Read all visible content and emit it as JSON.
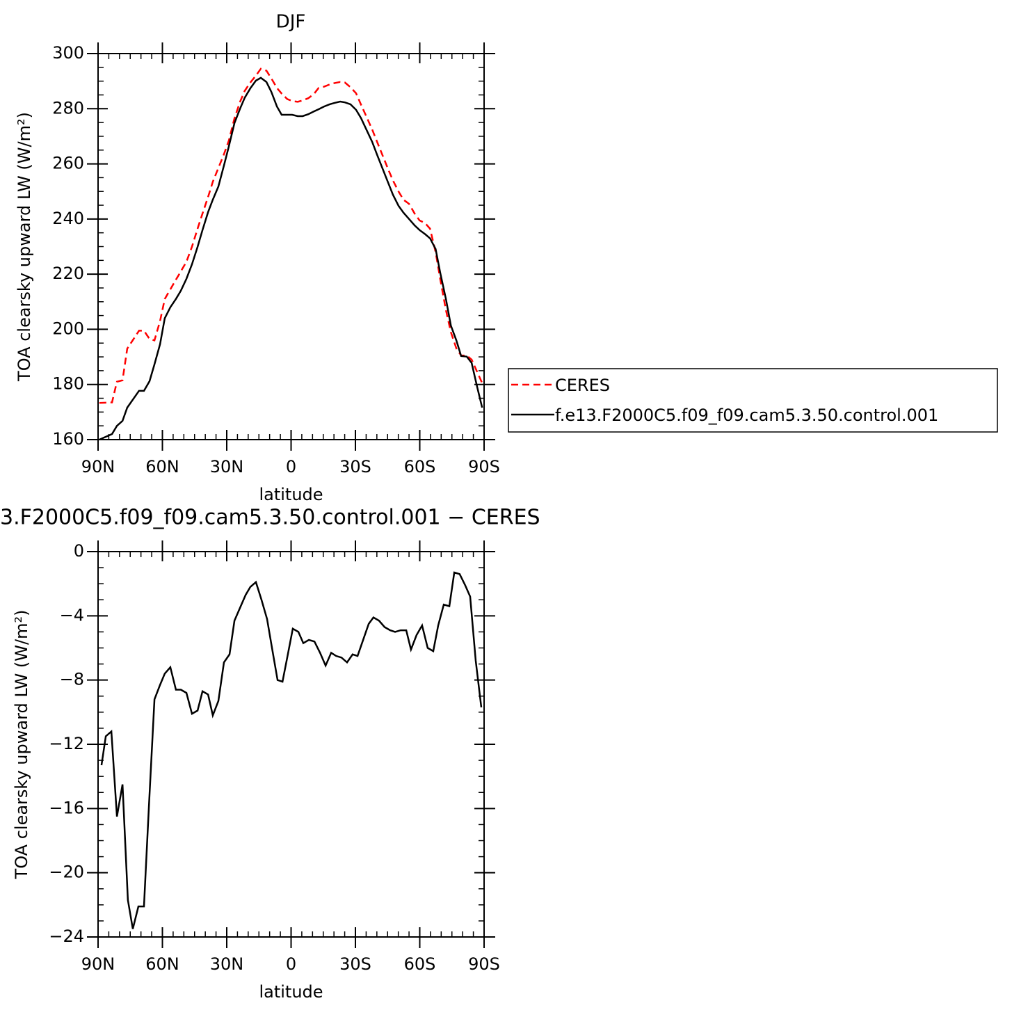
{
  "chart_data": [
    {
      "type": "line",
      "title": "DJF",
      "xlabel": "latitude",
      "ylabel": "TOA clearsky upward LW (W/m²)",
      "x": [
        89.4,
        83.5,
        81.2,
        78.6,
        76.4,
        70.9,
        68.6,
        66,
        63.7,
        61.1,
        58.9,
        56.3,
        53.7,
        51.4,
        48.8,
        46.2,
        43.6,
        41.3,
        38.7,
        36.5,
        33.9,
        31.3,
        29,
        26.4,
        23.8,
        21.6,
        19,
        16.4,
        14.1,
        11.5,
        9.2,
        6.6,
        4.4,
        1.8,
        -0.5,
        -3.1,
        -5.4,
        -8,
        -10.6,
        -12.8,
        -15.4,
        -18,
        -20.3,
        -22.9,
        -25.1,
        -27.7,
        -30.3,
        -32.6,
        -35.2,
        -37.8,
        -40.1,
        -42.7,
        -45.3,
        -47.5,
        -50.1,
        -52.4,
        -55,
        -57.6,
        -59.9,
        -62.5,
        -64.8,
        -67.4,
        -69.6,
        -72.2,
        -74.5,
        -77.1,
        -79.3,
        -81.9,
        -84.2,
        -86.8,
        -89.1
      ],
      "series": [
        {
          "name": "CERES",
          "color": "#ff0000",
          "linestyle": "dashed",
          "values": [
            173.3,
            173.5,
            181,
            181.5,
            193,
            199.5,
            199.5,
            196.5,
            196,
            203,
            211,
            214.5,
            218,
            221,
            224.5,
            230,
            236.5,
            242,
            248,
            253.5,
            258.5,
            263.5,
            268.5,
            276.5,
            282.5,
            286.5,
            289.5,
            292,
            294.5,
            293.8,
            291,
            287.5,
            285.5,
            283.5,
            282.8,
            282.5,
            283,
            283.8,
            285.3,
            287.5,
            288,
            288.8,
            289.3,
            289.7,
            289.5,
            287.8,
            285.6,
            281.5,
            277,
            272.5,
            268,
            263,
            258,
            254,
            250,
            247,
            245.5,
            242,
            239.5,
            238.5,
            236.5,
            228,
            218,
            207,
            199,
            193,
            190.5,
            190.5,
            189,
            184.5,
            180.5
          ]
        },
        {
          "name": "f.e13.F2000C5.f09_f09.cam5.3.50.control.001",
          "color": "#000000",
          "linestyle": "solid",
          "values": [
            160,
            162,
            165,
            166.8,
            171.6,
            177.7,
            177.7,
            181.2,
            187.3,
            194.6,
            204,
            208,
            211,
            214,
            218.3,
            223.6,
            229.9,
            236,
            242.5,
            247,
            251.8,
            259.4,
            266.4,
            274.8,
            280,
            284,
            287.4,
            290.2,
            291.2,
            289.7,
            286.1,
            280.8,
            277.8,
            277.8,
            277.8,
            277.3,
            277.3,
            278,
            279,
            279.8,
            280.8,
            281.6,
            282.1,
            282.6,
            282.3,
            281.6,
            279.6,
            276.6,
            272.3,
            268,
            263.3,
            258.2,
            253.1,
            248.8,
            244.8,
            242.3,
            240,
            237.7,
            236,
            234.5,
            233,
            229.1,
            220.3,
            211,
            201.4,
            195.9,
            190.3,
            190.1,
            187.8,
            179,
            171.6
          ]
        }
      ],
      "xlim": [
        90,
        -90
      ],
      "xticks": [
        {
          "value": 90,
          "label": "90N"
        },
        {
          "value": 60,
          "label": "60N"
        },
        {
          "value": 30,
          "label": "30N"
        },
        0,
        {
          "value": -30,
          "label": "30S"
        },
        {
          "value": -60,
          "label": "60S"
        },
        {
          "value": -90,
          "label": "90S"
        }
      ],
      "xminorticks": [
        85,
        80,
        75,
        70,
        65,
        55,
        50,
        45,
        40,
        35,
        25,
        20,
        15,
        10,
        5,
        -5,
        -10,
        -15,
        -20,
        -25,
        -35,
        -40,
        -45,
        -50,
        -55,
        -65,
        -70,
        -75,
        -80,
        -85
      ],
      "ylim": [
        160,
        300
      ],
      "yticks": [
        160,
        180,
        200,
        220,
        240,
        260,
        280,
        300
      ],
      "yminorticks": [
        165,
        170,
        175,
        185,
        190,
        195,
        205,
        210,
        215,
        225,
        230,
        235,
        245,
        250,
        255,
        265,
        270,
        275,
        285,
        290,
        295
      ],
      "legend": "outside right"
    },
    {
      "type": "line",
      "title": "3.F2000C5.f09_f09.cam5.3.50.control.001  −  CERES",
      "xlabel": "latitude",
      "ylabel": "TOA clearsky upward LW (W/m²)",
      "x": [
        88.4,
        86.4,
        83.8,
        81.2,
        78.6,
        76.1,
        73.8,
        71.2,
        68.6,
        66.3,
        63.7,
        61.1,
        58.9,
        56.3,
        53.7,
        51.4,
        48.8,
        46.2,
        43.6,
        41.3,
        38.7,
        36.5,
        33.9,
        31.3,
        28.7,
        26.4,
        23.8,
        21.2,
        19,
        16.4,
        13.8,
        11.2,
        8.9,
        6.3,
        4,
        1.8,
        -0.8,
        -3.4,
        -5.7,
        -8.3,
        -10.9,
        -13.5,
        -16.1,
        -18.7,
        -21,
        -23.5,
        -26.1,
        -28.7,
        -31,
        -33.6,
        -36.2,
        -38.4,
        -41,
        -43.6,
        -46.2,
        -48.5,
        -51.1,
        -53.7,
        -55.9,
        -58.5,
        -61.1,
        -63.7,
        -66.3,
        -68.6,
        -71.2,
        -73.8,
        -76.1,
        -78.6,
        -81.2,
        -83.5,
        -86.1,
        -88.7
      ],
      "series": [
        {
          "color": "#000000",
          "linestyle": "solid",
          "values": [
            -13.3,
            -11.5,
            -11.2,
            -16.5,
            -14.5,
            -21.7,
            -23.5,
            -22.1,
            -22.1,
            -15.9,
            -9.2,
            -8.3,
            -7.6,
            -7.2,
            -8.6,
            -8.6,
            -8.8,
            -10.1,
            -9.9,
            -8.7,
            -8.9,
            -10.2,
            -9.3,
            -6.9,
            -6.4,
            -4.3,
            -3.5,
            -2.7,
            -2.2,
            -1.9,
            -3,
            -4.2,
            -6,
            -8,
            -8.1,
            -6.6,
            -4.8,
            -5,
            -5.7,
            -5.5,
            -5.6,
            -6.3,
            -7.1,
            -6.3,
            -6.5,
            -6.6,
            -6.9,
            -6.4,
            -6.5,
            -5.5,
            -4.5,
            -4.1,
            -4.3,
            -4.7,
            -4.9,
            -5,
            -4.9,
            -4.9,
            -6.1,
            -5.2,
            -4.6,
            -6,
            -6.2,
            -4.6,
            -3.3,
            -3.4,
            -1.3,
            -1.4,
            -2.1,
            -2.8,
            -6.8,
            -9.7
          ]
        }
      ],
      "xlim": [
        90,
        -90
      ],
      "xticks": [
        {
          "value": 90,
          "label": "90N"
        },
        {
          "value": 60,
          "label": "60N"
        },
        {
          "value": 30,
          "label": "30N"
        },
        0,
        {
          "value": -30,
          "label": "30S"
        },
        {
          "value": -60,
          "label": "60S"
        },
        {
          "value": -90,
          "label": "90S"
        }
      ],
      "xminorticks": [
        85,
        80,
        75,
        70,
        65,
        55,
        50,
        45,
        40,
        35,
        25,
        20,
        15,
        10,
        5,
        -5,
        -10,
        -15,
        -20,
        -25,
        -35,
        -40,
        -45,
        -50,
        -55,
        -65,
        -70,
        -75,
        -80,
        -85
      ],
      "ylim": [
        -24,
        0
      ],
      "yticks": [
        {
          "value": -24,
          "label": "−24"
        },
        {
          "value": -20,
          "label": "−20"
        },
        {
          "value": -16,
          "label": "−16"
        },
        {
          "value": -12,
          "label": "−12"
        },
        {
          "value": -8,
          "label": "−8"
        },
        {
          "value": -4,
          "label": "−4"
        },
        0
      ],
      "yminorticks": [
        -23,
        -22,
        -21,
        -19,
        -18,
        -17,
        -15,
        -14,
        -13,
        -11,
        -10,
        -9,
        -7,
        -6,
        -5,
        -3,
        -2,
        -1
      ]
    }
  ]
}
